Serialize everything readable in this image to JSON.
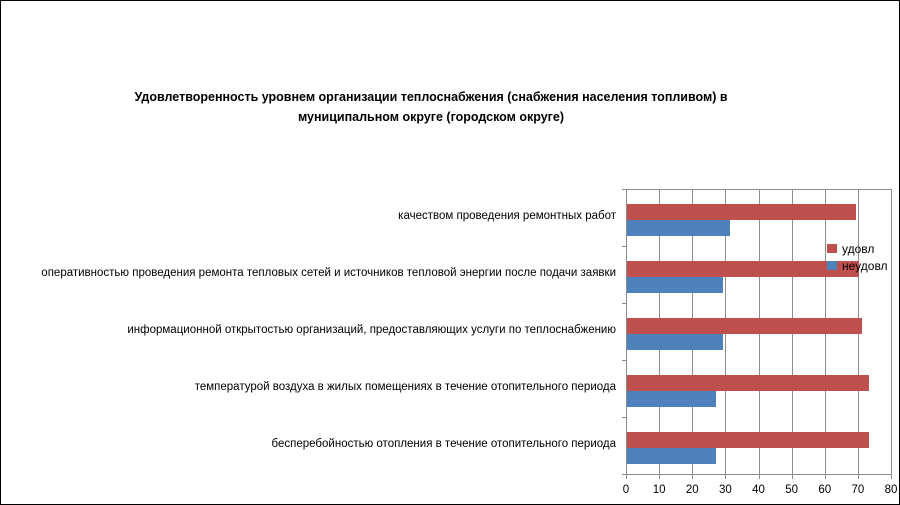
{
  "chart_data": {
    "type": "bar",
    "orientation": "horizontal",
    "title": "Удовлетворенность уровнем организации теплоснабжения (снабжения населения топливом) в муниципальном округе (городском округе)",
    "categories": [
      "качеством проведения ремонтных работ",
      "оперативностью проведения ремонта тепловых сетей и источников тепловой энергии после подачи заявки",
      "информационной открытостью организаций, предоставляющих услуги по теплоснабжению",
      "температурой воздуха в жилых помещениях в течение отопительного периода",
      "бесперебойностью отопления в течение отопительного периода"
    ],
    "series": [
      {
        "name": "удовл",
        "color": "#C0504D",
        "values": [
          69,
          70,
          71,
          73,
          73
        ]
      },
      {
        "name": "неудовл",
        "color": "#4F81BD",
        "values": [
          31,
          29,
          29,
          27,
          27
        ]
      }
    ],
    "xlim": [
      0,
      80
    ],
    "x_ticks": [
      0,
      10,
      20,
      30,
      40,
      50,
      60,
      70,
      80
    ],
    "grid": true,
    "legend_position": "inside-right",
    "colors": {
      "gridline": "#8C8C8C",
      "axis": "#8C8C8C",
      "text": "#000000",
      "background": "#FFFFFF",
      "frame_border": "#000000"
    }
  }
}
